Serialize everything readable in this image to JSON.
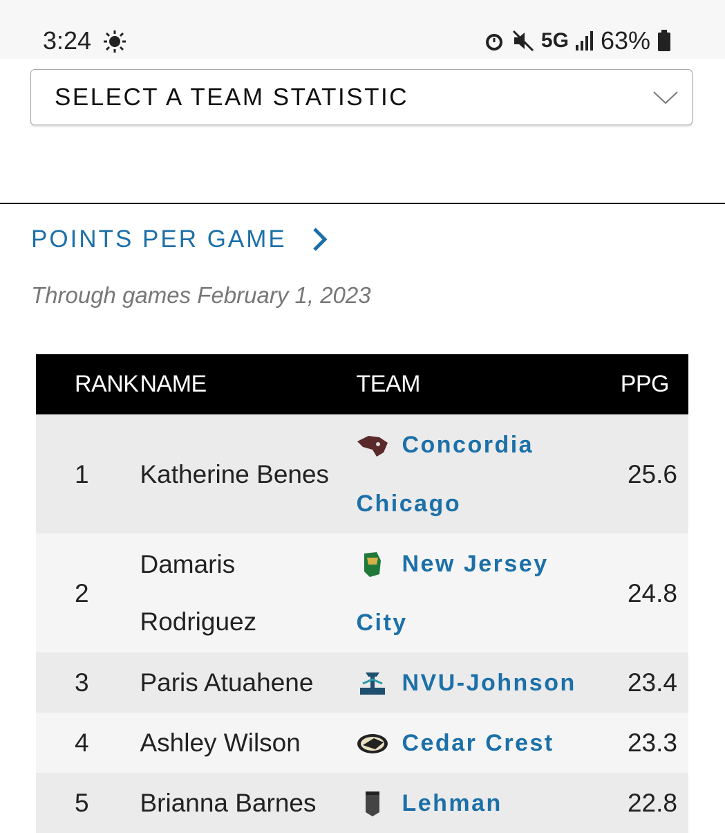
{
  "status_bar": {
    "time": "3:24",
    "network": "5G",
    "battery": "63%"
  },
  "select": {
    "label": "SELECT A TEAM STATISTIC"
  },
  "section": {
    "title": "POINTS PER GAME",
    "subtitle": "Through games February 1, 2023"
  },
  "table": {
    "headers": [
      "RANK",
      "NAME",
      "TEAM",
      "PPG"
    ],
    "rows": [
      [
        1,
        "Katherine Benes",
        "Concordia Chicago",
        25.6
      ],
      [
        2,
        "Damaris Rodriguez",
        "New Jersey City",
        24.8
      ],
      [
        3,
        "Paris Atuahene",
        "NVU-Johnson",
        23.4
      ],
      [
        4,
        "Ashley Wilson",
        "Cedar Crest",
        23.3
      ],
      [
        5,
        "Brianna Barnes",
        "Lehman",
        22.8
      ]
    ]
  }
}
